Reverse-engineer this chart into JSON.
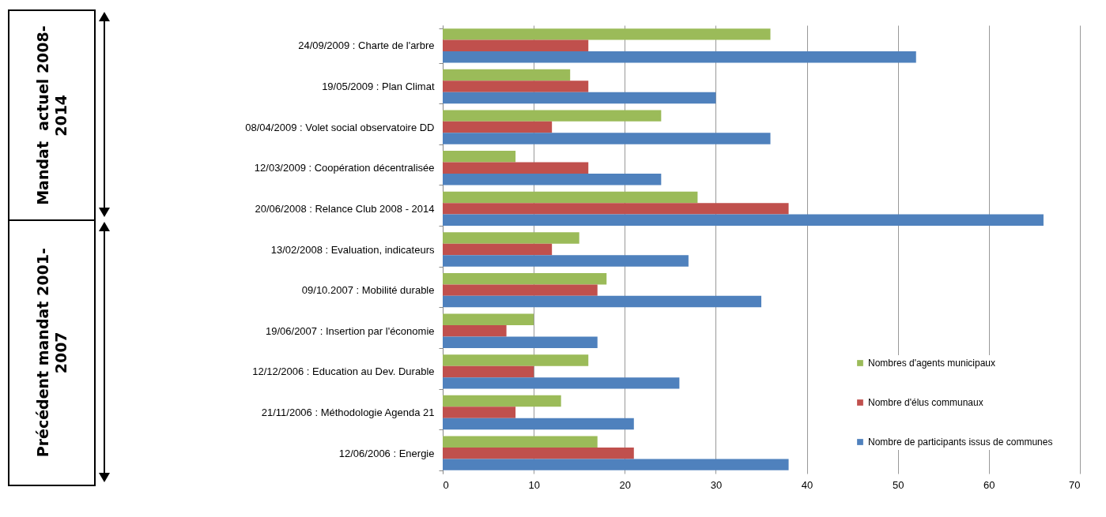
{
  "chart_data": {
    "type": "bar",
    "orientation": "horizontal",
    "categories": [
      "24/09/2009 : Charte de l'arbre",
      "19/05/2009 : Plan Climat",
      "08/04/2009 : Volet social observatoire DD",
      "12/03/2009 : Coopération décentralisée",
      "20/06/2008 : Relance Club 2008 - 2014",
      "13/02/2008 : Evaluation, indicateurs",
      "09/10.2007 : Mobilité durable",
      "19/06/2007 : Insertion par l'économie",
      "12/12/2006 : Education au Dev. Durable",
      "21/11/2006 : Méthodologie Agenda 21",
      "12/06/2006 : Energie"
    ],
    "series": [
      {
        "name": "Nombres d'agents municipaux",
        "color": "#9bbb59",
        "values": [
          36,
          14,
          24,
          8,
          28,
          15,
          18,
          10,
          16,
          13,
          17
        ]
      },
      {
        "name": "Nombre d'élus communaux",
        "color": "#c0504d",
        "values": [
          16,
          16,
          12,
          16,
          38,
          12,
          17,
          7,
          10,
          8,
          21
        ]
      },
      {
        "name": "Nombre de participants issus de communes",
        "color": "#4f81bd",
        "values": [
          52,
          30,
          36,
          24,
          66,
          27,
          35,
          17,
          26,
          21,
          38
        ]
      }
    ],
    "xlim": [
      0,
      70
    ],
    "xticks": [
      0,
      10,
      20,
      30,
      40,
      50,
      60,
      70
    ],
    "grid": "x",
    "legend": "bottom right",
    "annotations": [
      "Mandat  actuel 2008-2014",
      "Précédent mandat 2001-2007"
    ]
  }
}
